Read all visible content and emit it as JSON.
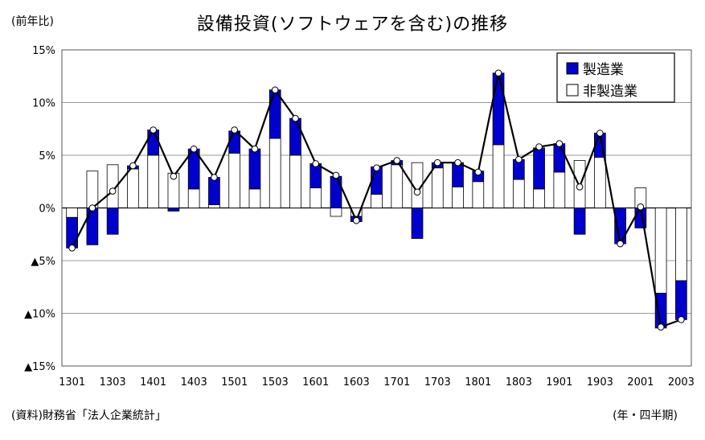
{
  "header": {
    "title": "設備投資(ソフトウェアを含む)の推移",
    "unit": "(前年比)"
  },
  "footer": {
    "source": "(資料)財務省「法人企業統計」",
    "period": "(年・四半期)"
  },
  "chart_data": {
    "type": "bar",
    "stacked": true,
    "title": "設備投資(ソフトウェアを含む)の推移",
    "quarters": [
      "1301",
      "1302",
      "1303",
      "1304",
      "1401",
      "1402",
      "1403",
      "1404",
      "1501",
      "1502",
      "1503",
      "1504",
      "1601",
      "1602",
      "1603",
      "1604",
      "1701",
      "1702",
      "1703",
      "1704",
      "1801",
      "1802",
      "1803",
      "1804",
      "1901",
      "1902",
      "1903",
      "1904",
      "2001",
      "2002",
      "2003"
    ],
    "x_tick_labels": [
      "1301",
      "1303",
      "1401",
      "1403",
      "1501",
      "1503",
      "1601",
      "1603",
      "1701",
      "1703",
      "1801",
      "1803",
      "1901",
      "1903",
      "2001",
      "2003"
    ],
    "y_tick_labels": [
      "15%",
      "10%",
      "5%",
      "0%",
      "▲5%",
      "▲10%",
      "▲15%"
    ],
    "ylim": [
      -15,
      15
    ],
    "grid": true,
    "legend_position": "top-right",
    "series": [
      {
        "name": "製造業",
        "color": "#0000cc",
        "values": [
          -2.9,
          -3.5,
          -2.5,
          0.3,
          2.4,
          -0.3,
          3.8,
          2.6,
          2.1,
          3.8,
          4.6,
          3.5,
          2.3,
          3.0,
          -0.5,
          2.6,
          0.4,
          -2.9,
          0.5,
          2.3,
          1.0,
          6.8,
          1.9,
          3.9,
          2.7,
          -2.5,
          2.3,
          -3.4,
          -1.9,
          -3.3,
          -3.7
        ]
      },
      {
        "name": "非製造業",
        "color": "#ffffff",
        "values": [
          -0.9,
          3.5,
          4.1,
          3.7,
          5.0,
          3.3,
          1.8,
          0.3,
          5.2,
          1.8,
          6.6,
          5.0,
          1.9,
          -0.8,
          -0.8,
          1.3,
          4.1,
          4.3,
          3.8,
          2.0,
          2.5,
          6.0,
          2.7,
          1.8,
          3.4,
          4.5,
          4.8,
          0.0,
          1.9,
          -8.1,
          -6.9
        ]
      }
    ],
    "total_line": {
      "color": "#000000",
      "values": [
        -3.8,
        0.0,
        1.6,
        4.0,
        7.4,
        3.0,
        5.6,
        2.9,
        7.4,
        5.6,
        11.2,
        8.5,
        4.2,
        3.1,
        -1.2,
        3.8,
        4.5,
        1.5,
        4.3,
        4.3,
        3.4,
        12.8,
        4.6,
        5.8,
        6.1,
        2.0,
        7.1,
        -3.4,
        0.1,
        -11.3,
        -10.6
      ]
    }
  }
}
